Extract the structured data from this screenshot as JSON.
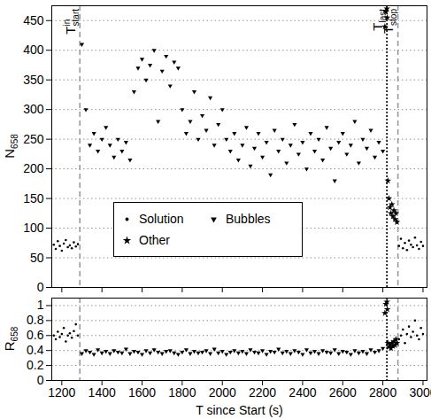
{
  "chart_data": [
    {
      "type": "scatter",
      "y_label": {
        "text": "N",
        "sub": "658"
      },
      "xlim": [
        1150,
        3020
      ],
      "xticks": [
        1200,
        1400,
        1600,
        1800,
        2000,
        2200,
        2400,
        2600,
        2800,
        3000
      ],
      "ylim": [
        0,
        475
      ],
      "yticks": [
        0,
        50,
        100,
        150,
        200,
        250,
        300,
        350,
        400,
        450
      ],
      "grid": true,
      "tick_labels": "y",
      "legend": "lower center",
      "annotations": [
        {
          "x": 1290,
          "text": "T",
          "sub": "start",
          "sup": "in",
          "line_style": "dashed",
          "color": "#999999"
        },
        {
          "x": 2820,
          "text": "T",
          "sub": "last",
          "line_style": "dotted",
          "color": "#000000"
        },
        {
          "x": 2875,
          "text": "T",
          "sub": "stop",
          "line_style": "dashed",
          "color": "#999999"
        }
      ],
      "series": [
        {
          "name": "Solution",
          "marker": "circle",
          "color": "#000000",
          "x": [
            1160,
            1170,
            1180,
            1190,
            1200,
            1210,
            1220,
            1230,
            1240,
            1250,
            1260,
            1270,
            1280,
            2880,
            2890,
            2900,
            2910,
            2920,
            2930,
            2940,
            2950,
            2960,
            2970,
            2980,
            2990,
            3000
          ],
          "values": [
            72,
            65,
            78,
            70,
            62,
            74,
            80,
            68,
            71,
            66,
            76,
            69,
            73,
            70,
            82,
            66,
            75,
            63,
            79,
            72,
            68,
            84,
            71,
            65,
            77,
            70
          ]
        },
        {
          "name": "Bubbles",
          "marker": "triangle-down",
          "color": "#000000",
          "x": [
            1300,
            1320,
            1340,
            1360,
            1380,
            1400,
            1420,
            1440,
            1460,
            1480,
            1500,
            1520,
            1540,
            1560,
            1580,
            1600,
            1620,
            1640,
            1660,
            1680,
            1700,
            1720,
            1740,
            1760,
            1780,
            1800,
            1820,
            1840,
            1860,
            1880,
            1900,
            1920,
            1940,
            1960,
            1980,
            2000,
            2020,
            2040,
            2060,
            2080,
            2100,
            2120,
            2140,
            2160,
            2180,
            2200,
            2220,
            2240,
            2260,
            2280,
            2300,
            2320,
            2340,
            2360,
            2380,
            2400,
            2420,
            2440,
            2460,
            2480,
            2500,
            2520,
            2540,
            2560,
            2580,
            2600,
            2620,
            2640,
            2660,
            2680,
            2700,
            2720,
            2740,
            2760,
            2780,
            2800
          ],
          "values": [
            410,
            300,
            240,
            260,
            230,
            250,
            270,
            240,
            220,
            250,
            230,
            245,
            215,
            330,
            370,
            385,
            350,
            375,
            400,
            280,
            365,
            390,
            340,
            380,
            370,
            300,
            260,
            280,
            330,
            250,
            290,
            265,
            320,
            240,
            275,
            300,
            250,
            230,
            260,
            215,
            240,
            270,
            205,
            235,
            260,
            220,
            245,
            190,
            265,
            230,
            250,
            210,
            240,
            275,
            225,
            245,
            200,
            260,
            230,
            250,
            215,
            270,
            235,
            180,
            245,
            260,
            225,
            240,
            280,
            210,
            250,
            235,
            265,
            220,
            245,
            230
          ]
        },
        {
          "name": "Other",
          "marker": "star",
          "color": "#000000",
          "x": [
            2810,
            2815,
            2820,
            2822,
            2825,
            2830,
            2835,
            2840,
            2845,
            2850,
            2855,
            2860,
            2865,
            2870
          ],
          "values": [
            440,
            465,
            470,
            455,
            180,
            150,
            135,
            125,
            140,
            120,
            130,
            115,
            125,
            110
          ]
        }
      ]
    },
    {
      "type": "scatter",
      "y_label": {
        "text": "R",
        "sub": "658"
      },
      "x_label": "T since Start (s)",
      "xlim": [
        1150,
        3020
      ],
      "xticks": [
        1200,
        1400,
        1600,
        1800,
        2000,
        2200,
        2400,
        2600,
        2800,
        3000
      ],
      "ylim": [
        0,
        1.1
      ],
      "yticks": [
        0,
        0.2,
        0.4,
        0.6,
        0.8,
        1
      ],
      "grid": true,
      "annotations": [
        {
          "x": 1290,
          "line_style": "dashed",
          "color": "#999999"
        },
        {
          "x": 2820,
          "line_style": "dotted",
          "color": "#000000"
        },
        {
          "x": 2875,
          "line_style": "dashed",
          "color": "#999999"
        }
      ],
      "series": [
        {
          "name": "Solution",
          "marker": "circle",
          "color": "#000000",
          "x": [
            1160,
            1170,
            1180,
            1190,
            1200,
            1210,
            1220,
            1230,
            1240,
            1250,
            1260,
            1270,
            1280,
            2880,
            2890,
            2900,
            2910,
            2920,
            2930,
            2940,
            2950,
            2960,
            2970,
            2980,
            2990,
            3000
          ],
          "values": [
            0.6,
            0.55,
            0.65,
            0.58,
            0.62,
            0.7,
            0.52,
            0.6,
            0.63,
            0.57,
            0.66,
            0.75,
            0.6,
            0.55,
            0.6,
            0.68,
            0.5,
            0.62,
            0.72,
            0.58,
            0.65,
            0.8,
            0.6,
            0.55,
            0.7,
            0.62
          ]
        },
        {
          "name": "Bubbles",
          "marker": "triangle-down",
          "color": "#000000",
          "x": [
            1300,
            1320,
            1340,
            1360,
            1380,
            1400,
            1420,
            1440,
            1460,
            1480,
            1500,
            1520,
            1540,
            1560,
            1580,
            1600,
            1620,
            1640,
            1660,
            1680,
            1700,
            1720,
            1740,
            1760,
            1780,
            1800,
            1820,
            1840,
            1860,
            1880,
            1900,
            1920,
            1940,
            1960,
            1980,
            2000,
            2020,
            2040,
            2060,
            2080,
            2100,
            2120,
            2140,
            2160,
            2180,
            2200,
            2220,
            2240,
            2260,
            2280,
            2300,
            2320,
            2340,
            2360,
            2380,
            2400,
            2420,
            2440,
            2460,
            2480,
            2500,
            2520,
            2540,
            2560,
            2580,
            2600,
            2620,
            2640,
            2660,
            2680,
            2700,
            2720,
            2740,
            2760,
            2780,
            2800
          ],
          "values": [
            0.36,
            0.4,
            0.38,
            0.35,
            0.41,
            0.37,
            0.39,
            0.36,
            0.4,
            0.38,
            0.37,
            0.42,
            0.36,
            0.39,
            0.38,
            0.35,
            0.4,
            0.37,
            0.41,
            0.38,
            0.36,
            0.39,
            0.4,
            0.37,
            0.35,
            0.38,
            0.41,
            0.36,
            0.39,
            0.37,
            0.38,
            0.4,
            0.36,
            0.42,
            0.37,
            0.39,
            0.35,
            0.38,
            0.4,
            0.37,
            0.39,
            0.36,
            0.41,
            0.38,
            0.37,
            0.4,
            0.35,
            0.39,
            0.38,
            0.42,
            0.37,
            0.39,
            0.36,
            0.4,
            0.38,
            0.35,
            0.41,
            0.37,
            0.39,
            0.36,
            0.4,
            0.38,
            0.37,
            0.41,
            0.36,
            0.39,
            0.38,
            0.35,
            0.4,
            0.37,
            0.39,
            0.36,
            0.41,
            0.38,
            0.4,
            0.43
          ]
        },
        {
          "name": "Other",
          "marker": "star",
          "color": "#000000",
          "x": [
            2810,
            2815,
            2820,
            2822,
            2825,
            2830,
            2835,
            2840,
            2845,
            2850,
            2855,
            2860,
            2865,
            2870
          ],
          "values": [
            0.9,
            1.02,
            1.05,
            0.95,
            0.5,
            0.45,
            0.48,
            0.43,
            0.5,
            0.46,
            0.52,
            0.47,
            0.55,
            0.5
          ]
        }
      ]
    }
  ]
}
